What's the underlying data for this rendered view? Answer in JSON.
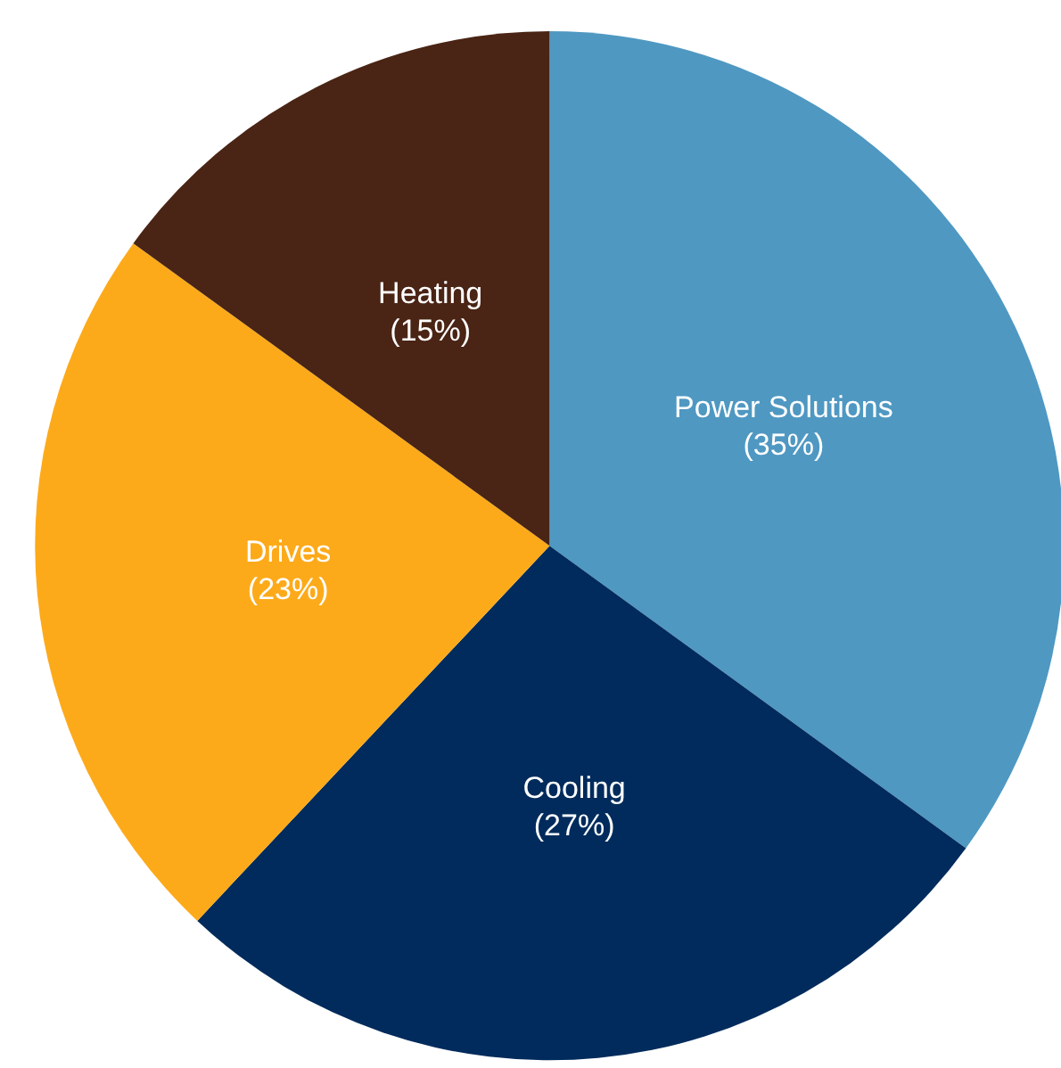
{
  "chart_data": {
    "type": "pie",
    "categories": [
      "Power Solutions",
      "Cooling",
      "Drives",
      "Heating"
    ],
    "values": [
      35,
      27,
      23,
      15
    ],
    "colors": [
      "#4f98c2",
      "#002b5c",
      "#fdaa1a",
      "#4a2414"
    ],
    "value_labels": [
      "(35%)",
      "(27%)",
      "(23%)",
      "(15%)"
    ],
    "legend": false
  }
}
